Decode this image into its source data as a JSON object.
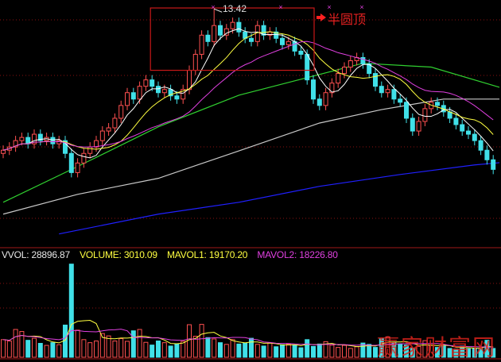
{
  "chart_data": {
    "type": "candlestick",
    "price_panel": {
      "ylim": [
        6.0,
        13.6
      ],
      "first_open": 8.9,
      "close": [
        9.0,
        9.1,
        9.3,
        9.4,
        9.2,
        9.5,
        9.3,
        9.4,
        9.2,
        9.3,
        8.9,
        8.3,
        8.6,
        8.9,
        9.1,
        9.3,
        9.6,
        9.7,
        10.0,
        10.4,
        10.8,
        10.6,
        11.0,
        11.2,
        11.0,
        10.8,
        10.9,
        10.7,
        10.6,
        10.9,
        11.5,
        12.0,
        12.6,
        12.4,
        12.9,
        12.6,
        12.8,
        13.0,
        12.7,
        12.5,
        12.4,
        12.9,
        12.6,
        12.7,
        12.5,
        12.3,
        12.4,
        12.1,
        12.0,
        11.2,
        10.6,
        10.4,
        10.8,
        11.1,
        11.4,
        11.6,
        11.8,
        11.9,
        11.7,
        11.4,
        11.0,
        10.8,
        10.9,
        10.6,
        10.5,
        10.0,
        9.6,
        9.9,
        10.3,
        10.5,
        10.4,
        10.2,
        10.0,
        9.8,
        9.6,
        9.5,
        9.3,
        9.0,
        8.7,
        8.4
      ],
      "marked_high": {
        "index": 34,
        "value": 13.42,
        "label": "13.42"
      },
      "computed_ma": [
        {
          "period": 5,
          "color": "#ffffff"
        },
        {
          "period": 10,
          "color": "#ffff40"
        },
        {
          "period": 20,
          "color": "#e040e0"
        }
      ],
      "long_ma": [
        {
          "color": "#30d030",
          "points": [
            [
              0,
              7.37
            ],
            [
              12,
              8.49
            ],
            [
              25,
              9.73
            ],
            [
              38,
              10.72
            ],
            [
              48,
              11.22
            ],
            [
              58,
              11.72
            ],
            [
              69,
              11.6
            ],
            [
              80,
              10.97
            ]
          ]
        },
        {
          "color": "#c8c8c8",
          "points": [
            [
              0,
              7.0
            ],
            [
              12,
              7.62
            ],
            [
              25,
              8.12
            ],
            [
              38,
              8.98
            ],
            [
              51,
              9.85
            ],
            [
              61,
              10.27
            ],
            [
              71,
              10.6
            ],
            [
              80,
              10.6
            ]
          ]
        },
        {
          "color": "#2020ff",
          "points": [
            [
              9,
              6.38
            ],
            [
              25,
              7.0
            ],
            [
              38,
              7.37
            ],
            [
              51,
              7.87
            ],
            [
              64,
              8.24
            ],
            [
              76,
              8.54
            ],
            [
              80,
              8.61
            ]
          ]
        }
      ],
      "annotation": {
        "text": "半圆顶",
        "box_from_index": 24,
        "box_to_index": 50,
        "box_price_range": [
          11.5,
          13.45
        ]
      }
    },
    "volume_panel": {
      "ylim": [
        0,
        30000
      ],
      "values": [
        5200,
        4800,
        8200,
        7600,
        5000,
        5600,
        4100,
        3500,
        4300,
        3700,
        9500,
        27500,
        8000,
        5200,
        4300,
        4800,
        7000,
        6300,
        4800,
        5500,
        4700,
        7800,
        8200,
        4400,
        3600,
        4800,
        4300,
        3300,
        3900,
        4700,
        9600,
        6200,
        9700,
        5800,
        5400,
        4300,
        3800,
        5200,
        3900,
        4100,
        5600,
        3800,
        3300,
        4200,
        3100,
        3700,
        3900,
        3600,
        2800,
        5200,
        3200,
        3900,
        4600,
        3600,
        2900,
        3500,
        2600,
        3100,
        4200,
        3800,
        2900,
        5400,
        6000,
        4400,
        3800,
        3600,
        2700,
        3200,
        4900,
        3500,
        2900,
        3300,
        2600,
        2400,
        3300,
        2500,
        2700,
        2400,
        5000,
        2600
      ],
      "legend": [
        {
          "label": "VVOL: 28896.87",
          "color": "#e8e8e8"
        },
        {
          "label": "VOLUME: 3010.09",
          "color": "#ffff40"
        },
        {
          "label": "MAVOL1: 19170.20",
          "color": "#ffff40"
        },
        {
          "label": "MAVOL2: 18226.80",
          "color": "#e040e0"
        }
      ],
      "mavol_periods": [
        5,
        10
      ]
    },
    "colors": {
      "up": "#ff5050",
      "down": "#40e0e8",
      "grid": "#8a1010",
      "box": "#c81818"
    }
  },
  "watermark": "赢家财富网"
}
